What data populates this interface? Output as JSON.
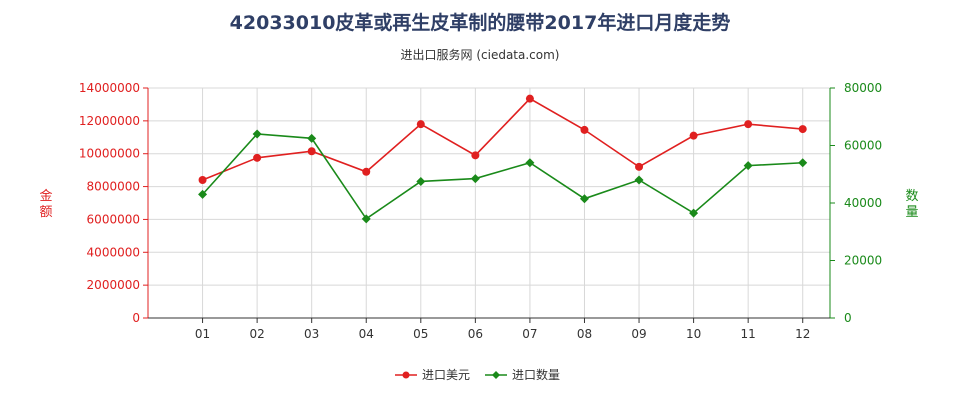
{
  "chart_data": {
    "type": "line",
    "title": "42033010皮革或再生皮革制的腰带2017年进口月度走势",
    "subtitle": "进出口服务网 (ciedata.com)",
    "categories": [
      "01",
      "02",
      "03",
      "04",
      "05",
      "06",
      "07",
      "08",
      "09",
      "10",
      "11",
      "12"
    ],
    "y_left": {
      "label": "金额",
      "range": [
        0,
        14000000
      ],
      "ticks": [
        0,
        2000000,
        4000000,
        6000000,
        8000000,
        10000000,
        12000000,
        14000000
      ],
      "color": "#e02020"
    },
    "y_right": {
      "label": "数量",
      "range": [
        0,
        80000
      ],
      "ticks": [
        0,
        20000,
        40000,
        60000,
        80000
      ],
      "color": "#1a8a1a"
    },
    "series": [
      {
        "name": "进口美元",
        "axis": "left",
        "color": "#e02020",
        "marker": "circle",
        "values": [
          8400000,
          9750000,
          10150000,
          8900000,
          11800000,
          9900000,
          13350000,
          11450000,
          9200000,
          11100000,
          11800000,
          11500000
        ]
      },
      {
        "name": "进口数量",
        "axis": "right",
        "color": "#1a8a1a",
        "marker": "diamond",
        "values": [
          43000,
          64000,
          62500,
          34500,
          47500,
          48500,
          54000,
          41500,
          48000,
          36500,
          53000,
          54000
        ]
      }
    ],
    "grid": true,
    "legend_position": "bottom-center"
  }
}
